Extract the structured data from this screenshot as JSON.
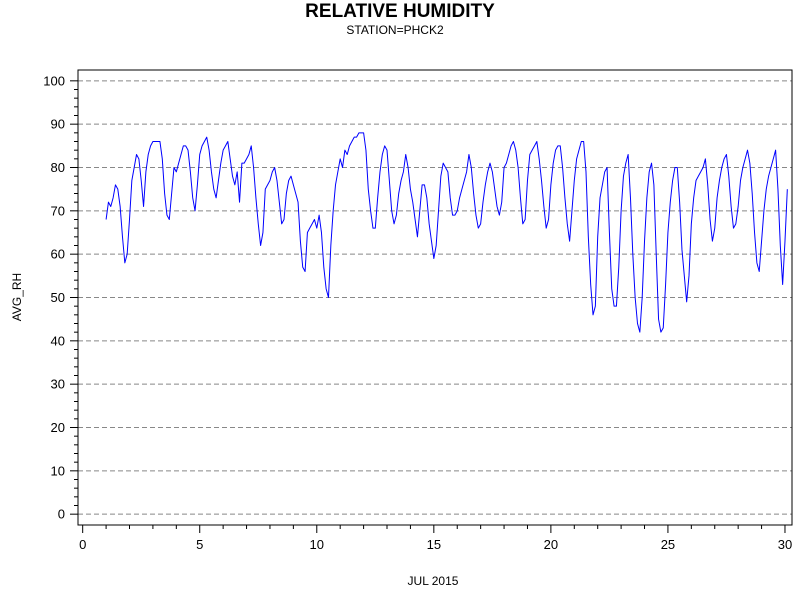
{
  "chart_data": {
    "type": "line",
    "title": "RELATIVE HUMIDITY",
    "subtitle": "STATION=PHCK2",
    "xlabel": "JUL 2015",
    "ylabel": "AVG_RH",
    "xlim": [
      -0.2,
      30.3
    ],
    "ylim": [
      -2.5,
      102.5
    ],
    "xticks": [
      0,
      5,
      10,
      15,
      20,
      25,
      30
    ],
    "yticks": [
      0,
      10,
      20,
      30,
      40,
      50,
      60,
      70,
      80,
      90,
      100
    ],
    "y_minor_step": 2,
    "x_minor_step": 1,
    "grid": {
      "y_major": true,
      "style": "dashed",
      "color": "#888888"
    },
    "series": [
      {
        "color": "#0000ff",
        "points": [
          [
            1.0,
            68
          ],
          [
            1.1,
            72
          ],
          [
            1.2,
            71
          ],
          [
            1.3,
            73
          ],
          [
            1.4,
            76
          ],
          [
            1.5,
            75
          ],
          [
            1.6,
            71
          ],
          [
            1.7,
            64
          ],
          [
            1.8,
            58
          ],
          [
            1.9,
            60
          ],
          [
            2.0,
            68
          ],
          [
            2.1,
            77
          ],
          [
            2.2,
            80
          ],
          [
            2.3,
            83
          ],
          [
            2.4,
            82
          ],
          [
            2.5,
            77
          ],
          [
            2.6,
            71
          ],
          [
            2.7,
            79
          ],
          [
            2.8,
            83
          ],
          [
            2.9,
            85
          ],
          [
            3.0,
            86
          ],
          [
            3.2,
            86
          ],
          [
            3.3,
            86
          ],
          [
            3.4,
            82
          ],
          [
            3.5,
            74
          ],
          [
            3.6,
            69
          ],
          [
            3.7,
            68
          ],
          [
            3.8,
            74
          ],
          [
            3.9,
            80
          ],
          [
            4.0,
            79
          ],
          [
            4.1,
            81
          ],
          [
            4.2,
            83
          ],
          [
            4.3,
            85
          ],
          [
            4.4,
            85
          ],
          [
            4.5,
            84
          ],
          [
            4.6,
            79
          ],
          [
            4.7,
            73
          ],
          [
            4.8,
            70
          ],
          [
            4.9,
            76
          ],
          [
            5.0,
            83
          ],
          [
            5.1,
            85
          ],
          [
            5.2,
            86
          ],
          [
            5.3,
            87
          ],
          [
            5.4,
            84
          ],
          [
            5.5,
            79
          ],
          [
            5.6,
            75
          ],
          [
            5.7,
            73
          ],
          [
            5.8,
            77
          ],
          [
            5.9,
            81
          ],
          [
            6.0,
            84
          ],
          [
            6.1,
            85
          ],
          [
            6.2,
            86
          ],
          [
            6.3,
            82
          ],
          [
            6.4,
            78
          ],
          [
            6.5,
            76
          ],
          [
            6.6,
            79
          ],
          [
            6.7,
            72
          ],
          [
            6.8,
            81
          ],
          [
            6.9,
            81
          ],
          [
            7.0,
            82
          ],
          [
            7.1,
            83
          ],
          [
            7.2,
            85
          ],
          [
            7.3,
            80
          ],
          [
            7.4,
            73
          ],
          [
            7.5,
            67
          ],
          [
            7.6,
            62
          ],
          [
            7.7,
            65
          ],
          [
            7.8,
            75
          ],
          [
            8.0,
            77
          ],
          [
            8.1,
            79
          ],
          [
            8.2,
            80
          ],
          [
            8.3,
            77
          ],
          [
            8.4,
            72
          ],
          [
            8.5,
            67
          ],
          [
            8.6,
            68
          ],
          [
            8.7,
            74
          ],
          [
            8.8,
            77
          ],
          [
            8.9,
            78
          ],
          [
            9.0,
            76
          ],
          [
            9.1,
            74
          ],
          [
            9.2,
            72
          ],
          [
            9.3,
            63
          ],
          [
            9.4,
            57
          ],
          [
            9.5,
            56
          ],
          [
            9.6,
            65
          ],
          [
            9.7,
            66
          ],
          [
            9.8,
            67
          ],
          [
            9.9,
            68
          ],
          [
            10.0,
            66
          ],
          [
            10.1,
            69
          ],
          [
            10.2,
            65
          ],
          [
            10.3,
            57
          ],
          [
            10.4,
            52
          ],
          [
            10.5,
            50
          ],
          [
            10.6,
            62
          ],
          [
            10.7,
            70
          ],
          [
            10.8,
            76
          ],
          [
            10.9,
            79
          ],
          [
            11.0,
            82
          ],
          [
            11.1,
            80
          ],
          [
            11.2,
            84
          ],
          [
            11.3,
            83
          ],
          [
            11.4,
            85
          ],
          [
            11.5,
            86
          ],
          [
            11.6,
            87
          ],
          [
            11.7,
            87
          ],
          [
            11.8,
            88
          ],
          [
            11.9,
            88
          ],
          [
            12.0,
            88
          ],
          [
            12.1,
            84
          ],
          [
            12.2,
            75
          ],
          [
            12.3,
            70
          ],
          [
            12.4,
            66
          ],
          [
            12.5,
            66
          ],
          [
            12.6,
            73
          ],
          [
            12.7,
            79
          ],
          [
            12.8,
            83
          ],
          [
            12.9,
            85
          ],
          [
            13.0,
            84
          ],
          [
            13.1,
            77
          ],
          [
            13.2,
            70
          ],
          [
            13.3,
            67
          ],
          [
            13.4,
            69
          ],
          [
            13.5,
            74
          ],
          [
            13.6,
            77
          ],
          [
            13.7,
            79
          ],
          [
            13.8,
            83
          ],
          [
            13.9,
            80
          ],
          [
            14.0,
            75
          ],
          [
            14.1,
            72
          ],
          [
            14.2,
            68
          ],
          [
            14.3,
            64
          ],
          [
            14.4,
            70
          ],
          [
            14.5,
            76
          ],
          [
            14.6,
            76
          ],
          [
            14.7,
            73
          ],
          [
            14.8,
            67
          ],
          [
            14.9,
            63
          ],
          [
            15.0,
            59
          ],
          [
            15.1,
            62
          ],
          [
            15.2,
            70
          ],
          [
            15.3,
            78
          ],
          [
            15.4,
            81
          ],
          [
            15.5,
            80
          ],
          [
            15.6,
            79
          ],
          [
            15.7,
            73
          ],
          [
            15.8,
            69
          ],
          [
            15.9,
            69
          ],
          [
            16.0,
            70
          ],
          [
            16.1,
            73
          ],
          [
            16.2,
            75
          ],
          [
            16.3,
            77
          ],
          [
            16.4,
            79
          ],
          [
            16.5,
            83
          ],
          [
            16.6,
            80
          ],
          [
            16.7,
            74
          ],
          [
            16.8,
            69
          ],
          [
            16.9,
            66
          ],
          [
            17.0,
            67
          ],
          [
            17.1,
            72
          ],
          [
            17.2,
            76
          ],
          [
            17.3,
            79
          ],
          [
            17.4,
            81
          ],
          [
            17.5,
            79
          ],
          [
            17.6,
            75
          ],
          [
            17.7,
            71
          ],
          [
            17.8,
            69
          ],
          [
            17.9,
            72
          ],
          [
            18.0,
            80
          ],
          [
            18.1,
            81
          ],
          [
            18.2,
            83
          ],
          [
            18.3,
            85
          ],
          [
            18.4,
            86
          ],
          [
            18.5,
            84
          ],
          [
            18.6,
            80
          ],
          [
            18.7,
            73
          ],
          [
            18.8,
            67
          ],
          [
            18.9,
            68
          ],
          [
            19.0,
            77
          ],
          [
            19.1,
            83
          ],
          [
            19.2,
            84
          ],
          [
            19.3,
            85
          ],
          [
            19.4,
            86
          ],
          [
            19.5,
            82
          ],
          [
            19.6,
            77
          ],
          [
            19.7,
            71
          ],
          [
            19.8,
            66
          ],
          [
            19.9,
            68
          ],
          [
            20.0,
            76
          ],
          [
            20.1,
            81
          ],
          [
            20.2,
            84
          ],
          [
            20.3,
            85
          ],
          [
            20.4,
            85
          ],
          [
            20.5,
            80
          ],
          [
            20.6,
            73
          ],
          [
            20.7,
            67
          ],
          [
            20.8,
            63
          ],
          [
            20.9,
            70
          ],
          [
            21.0,
            77
          ],
          [
            21.1,
            82
          ],
          [
            21.2,
            84
          ],
          [
            21.3,
            86
          ],
          [
            21.4,
            86
          ],
          [
            21.5,
            79
          ],
          [
            21.6,
            64
          ],
          [
            21.7,
            53
          ],
          [
            21.8,
            46
          ],
          [
            21.9,
            48
          ],
          [
            22.0,
            64
          ],
          [
            22.1,
            73
          ],
          [
            22.2,
            76
          ],
          [
            22.3,
            79
          ],
          [
            22.4,
            80
          ],
          [
            22.5,
            65
          ],
          [
            22.6,
            52
          ],
          [
            22.7,
            48
          ],
          [
            22.8,
            48
          ],
          [
            22.9,
            57
          ],
          [
            23.0,
            70
          ],
          [
            23.1,
            78
          ],
          [
            23.2,
            81
          ],
          [
            23.3,
            83
          ],
          [
            23.4,
            73
          ],
          [
            23.5,
            60
          ],
          [
            23.6,
            50
          ],
          [
            23.7,
            44
          ],
          [
            23.8,
            42
          ],
          [
            23.9,
            50
          ],
          [
            24.0,
            63
          ],
          [
            24.1,
            73
          ],
          [
            24.2,
            79
          ],
          [
            24.3,
            81
          ],
          [
            24.4,
            76
          ],
          [
            24.5,
            60
          ],
          [
            24.6,
            45
          ],
          [
            24.7,
            42
          ],
          [
            24.8,
            43
          ],
          [
            24.9,
            53
          ],
          [
            25.0,
            65
          ],
          [
            25.1,
            72
          ],
          [
            25.2,
            77
          ],
          [
            25.3,
            80
          ],
          [
            25.4,
            80
          ],
          [
            25.5,
            72
          ],
          [
            25.6,
            61
          ],
          [
            25.7,
            55
          ],
          [
            25.8,
            49
          ],
          [
            25.9,
            55
          ],
          [
            26.0,
            67
          ],
          [
            26.1,
            73
          ],
          [
            26.2,
            77
          ],
          [
            26.3,
            78
          ],
          [
            26.4,
            79
          ],
          [
            26.5,
            80
          ],
          [
            26.6,
            82
          ],
          [
            26.7,
            76
          ],
          [
            26.8,
            68
          ],
          [
            26.9,
            63
          ],
          [
            27.0,
            66
          ],
          [
            27.1,
            73
          ],
          [
            27.2,
            77
          ],
          [
            27.3,
            80
          ],
          [
            27.4,
            82
          ],
          [
            27.5,
            83
          ],
          [
            27.6,
            78
          ],
          [
            27.7,
            71
          ],
          [
            27.8,
            66
          ],
          [
            27.9,
            67
          ],
          [
            28.0,
            71
          ],
          [
            28.1,
            77
          ],
          [
            28.2,
            80
          ],
          [
            28.3,
            82
          ],
          [
            28.4,
            84
          ],
          [
            28.5,
            81
          ],
          [
            28.6,
            74
          ],
          [
            28.7,
            65
          ],
          [
            28.8,
            58
          ],
          [
            28.9,
            56
          ],
          [
            29.0,
            63
          ],
          [
            29.1,
            70
          ],
          [
            29.2,
            75
          ],
          [
            29.3,
            78
          ],
          [
            29.4,
            80
          ],
          [
            29.5,
            82
          ],
          [
            29.6,
            84
          ],
          [
            29.7,
            75
          ],
          [
            29.8,
            62
          ],
          [
            29.9,
            53
          ],
          [
            30.0,
            63
          ],
          [
            30.1,
            75
          ]
        ]
      }
    ]
  }
}
